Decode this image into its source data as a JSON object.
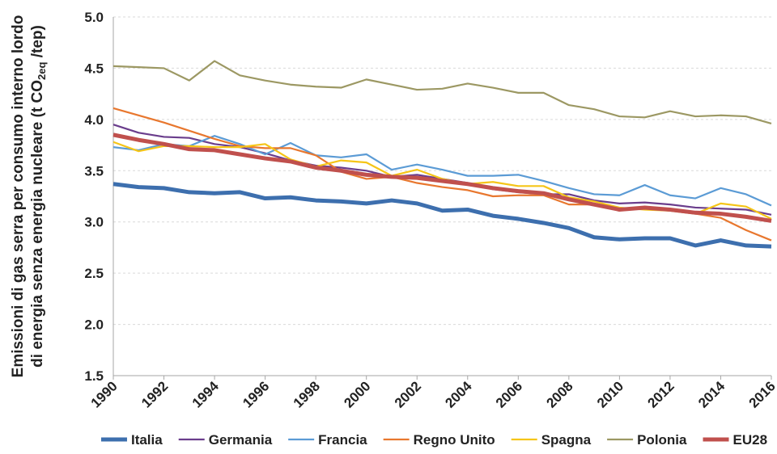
{
  "chart_data": {
    "type": "line",
    "y_label_lines": [
      [
        "Emissioni di gas serra per consumo interno lordo"
      ],
      [
        "di energia senza energia nucleare (t CO",
        "2eq",
        " /tep)"
      ]
    ],
    "x": [
      1990,
      1991,
      1992,
      1993,
      1994,
      1995,
      1996,
      1997,
      1998,
      1999,
      2000,
      2001,
      2002,
      2003,
      2004,
      2005,
      2006,
      2007,
      2008,
      2009,
      2010,
      2011,
      2012,
      2013,
      2014,
      2015,
      2016
    ],
    "xlim": [
      1990,
      2016
    ],
    "xticks": [
      1990,
      1992,
      1994,
      1996,
      1998,
      2000,
      2002,
      2004,
      2006,
      2008,
      2010,
      2012,
      2014,
      2016
    ],
    "ylim": [
      1.5,
      5
    ],
    "yticks": [
      1.5,
      {
        "value": 2,
        "label": "2.0"
      },
      2.5,
      {
        "value": 3,
        "label": "3.0"
      },
      3.5,
      {
        "value": 4,
        "label": "4.0"
      },
      4.5,
      {
        "value": 5,
        "label": "5.0"
      }
    ],
    "grid": true,
    "legend": "bottom",
    "series": [
      {
        "name": "Italia",
        "color": "#3d6fae",
        "line_width": 5,
        "values": [
          3.37,
          3.34,
          3.33,
          3.29,
          3.28,
          3.29,
          3.23,
          3.24,
          3.21,
          3.2,
          3.18,
          3.21,
          3.18,
          3.11,
          3.12,
          3.06,
          3.03,
          2.99,
          2.94,
          2.85,
          2.83,
          2.84,
          2.84,
          2.77,
          2.82,
          2.77,
          2.76
        ]
      },
      {
        "name": "Germania",
        "color": "#6a3d8c",
        "line_width": 2.2,
        "values": [
          3.95,
          3.87,
          3.83,
          3.82,
          3.76,
          3.73,
          3.67,
          3.6,
          3.55,
          3.53,
          3.5,
          3.44,
          3.46,
          3.42,
          3.38,
          3.32,
          3.29,
          3.27,
          3.27,
          3.21,
          3.18,
          3.19,
          3.17,
          3.14,
          3.13,
          3.12,
          3.07
        ]
      },
      {
        "name": "Francia",
        "color": "#5b9bd5",
        "line_width": 2.2,
        "values": [
          3.73,
          3.7,
          3.76,
          3.74,
          3.84,
          3.76,
          3.66,
          3.77,
          3.65,
          3.63,
          3.66,
          3.51,
          3.56,
          3.51,
          3.45,
          3.45,
          3.46,
          3.4,
          3.33,
          3.27,
          3.26,
          3.36,
          3.26,
          3.23,
          3.33,
          3.27,
          3.16
        ]
      },
      {
        "name": "Regno Unito",
        "color": "#e8772e",
        "line_width": 2.2,
        "values": [
          4.11,
          4.04,
          3.97,
          3.89,
          3.81,
          3.74,
          3.72,
          3.72,
          3.65,
          3.49,
          3.42,
          3.44,
          3.38,
          3.34,
          3.31,
          3.25,
          3.26,
          3.26,
          3.17,
          3.17,
          3.12,
          3.13,
          3.11,
          3.08,
          3.04,
          2.92,
          2.82
        ]
      },
      {
        "name": "Spagna",
        "color": "#f5c518",
        "line_width": 2.2,
        "values": [
          3.78,
          3.69,
          3.74,
          3.74,
          3.73,
          3.73,
          3.76,
          3.61,
          3.54,
          3.6,
          3.58,
          3.45,
          3.51,
          3.42,
          3.37,
          3.39,
          3.35,
          3.35,
          3.24,
          3.2,
          3.14,
          3.12,
          3.11,
          3.08,
          3.18,
          3.15,
          3.03
        ]
      },
      {
        "name": "Polonia",
        "color": "#9c9863",
        "line_width": 2.2,
        "values": [
          4.52,
          4.51,
          4.5,
          4.38,
          4.57,
          4.43,
          4.38,
          4.34,
          4.32,
          4.31,
          4.39,
          4.34,
          4.29,
          4.3,
          4.35,
          4.31,
          4.26,
          4.26,
          4.14,
          4.1,
          4.03,
          4.02,
          4.08,
          4.03,
          4.04,
          4.03,
          3.96
        ]
      },
      {
        "name": "EU28",
        "color": "#c0504d",
        "line_width": 5,
        "values": [
          3.85,
          3.8,
          3.76,
          3.71,
          3.7,
          3.66,
          3.62,
          3.59,
          3.53,
          3.5,
          3.46,
          3.44,
          3.43,
          3.4,
          3.37,
          3.33,
          3.3,
          3.28,
          3.22,
          3.17,
          3.12,
          3.14,
          3.12,
          3.09,
          3.08,
          3.05,
          3.01
        ]
      }
    ]
  }
}
